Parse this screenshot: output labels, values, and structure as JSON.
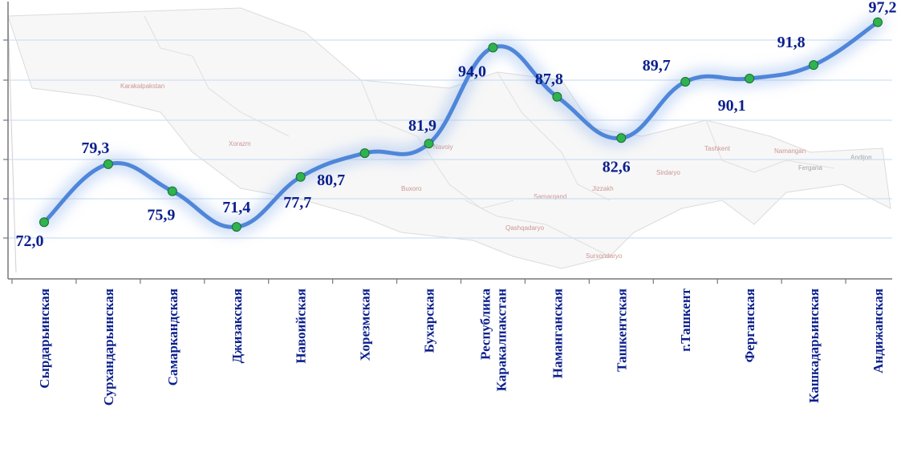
{
  "chart_data": {
    "type": "line",
    "title": "",
    "xlabel": "",
    "ylabel": "",
    "ylim": [
      65,
      100
    ],
    "grid": true,
    "smooth": true,
    "categories": [
      "Сырдарьинская",
      "Сурхандарьинская",
      "Самаркандская",
      "Джизакская",
      "Навоийская",
      "Хорезмская",
      "Бухарская",
      "Республика Каракалпакстан",
      "Наманганская",
      "Ташкентская",
      "г.Ташкент",
      "Ферганская",
      "Кашкадарьинская",
      "Андижанская"
    ],
    "values": [
      72.0,
      79.3,
      75.9,
      71.4,
      77.7,
      80.7,
      81.9,
      94.0,
      87.8,
      82.6,
      89.7,
      90.1,
      91.8,
      97.2
    ],
    "value_labels": [
      "72,0",
      "79,3",
      "75,9",
      "71,4",
      "77,7",
      "80,7",
      "81,9",
      "94,0",
      "87,8",
      "82,6",
      "89,7",
      "90,1",
      "91,8",
      "97,2"
    ],
    "colors": {
      "line": "#4f86d9",
      "marker": "#2eb34f",
      "marker_edge": "#1c6a2e",
      "label": "#0b1f8c",
      "grid": "#cfe0f2",
      "axis": "#777777"
    }
  },
  "background_map": {
    "labels": [
      "Karakalpakstan",
      "Xorazm",
      "Navoiy",
      "Buxoro",
      "Samarqand",
      "Jizzakh",
      "Qashqadaryo",
      "Surxondaryo",
      "Sirdaryo",
      "Tashkent",
      "Namangan",
      "Fergana",
      "Andijon"
    ]
  }
}
